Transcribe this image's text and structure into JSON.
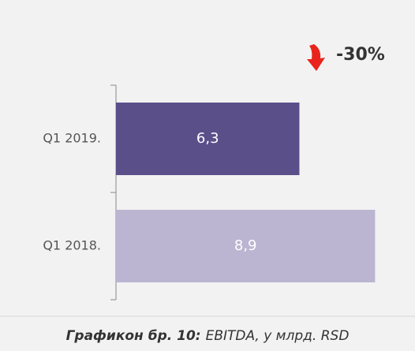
{
  "chart_data": {
    "type": "hbar",
    "categories": [
      "Q1 2019.",
      "Q1 2018."
    ],
    "values": [
      6.3,
      8.9
    ],
    "value_labels": [
      "6,3",
      "8,9"
    ],
    "colors": [
      "#5b4f8a",
      "#bbb5d2"
    ],
    "annotation": "-30%",
    "caption": {
      "label": "Графикон бр. 10:",
      "text": "EBITDA, у млрд. RSD"
    }
  }
}
